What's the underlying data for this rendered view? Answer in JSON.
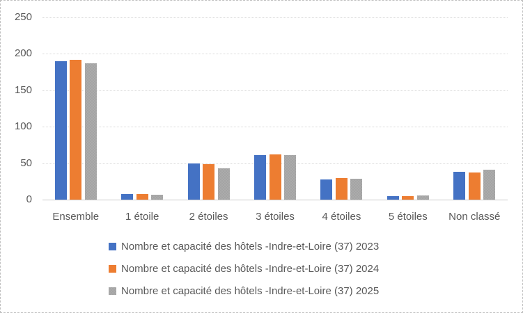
{
  "chart": {
    "background": "#ffffff",
    "border_color": "#bfbfbf",
    "gridline_color": "#d9d9d9",
    "text_color": "#595959"
  },
  "chart_data": {
    "type": "bar",
    "title": "",
    "xlabel": "",
    "ylabel": "",
    "categories": [
      "Ensemble",
      "1 étoile",
      "2 étoiles",
      "3 étoiles",
      "4 étoiles",
      "5 étoiles",
      "Non classé"
    ],
    "series": [
      {
        "name": "Nombre et capacité des hôtels -Indre-et-Loire (37) 2023",
        "color": "#4472c4",
        "pattern": "solid",
        "values": [
          190,
          8,
          50,
          61,
          28,
          5,
          38
        ]
      },
      {
        "name": "Nombre et capacité des hôtels -Indre-et-Loire (37) 2024",
        "color": "#ed7d31",
        "pattern": "solid",
        "values": [
          191,
          8,
          49,
          62,
          30,
          5,
          37
        ]
      },
      {
        "name": "Nombre et capacité des hôtels -Indre-et-Loire (37) 2025",
        "color": "#a5a5a5",
        "pattern": "dotted",
        "values": [
          187,
          7,
          43,
          61,
          29,
          6,
          41
        ]
      }
    ],
    "ylim": [
      0,
      250
    ],
    "yticks": [
      0,
      50,
      100,
      150,
      200,
      250
    ],
    "grid": true,
    "legend_position": "bottom-left"
  }
}
